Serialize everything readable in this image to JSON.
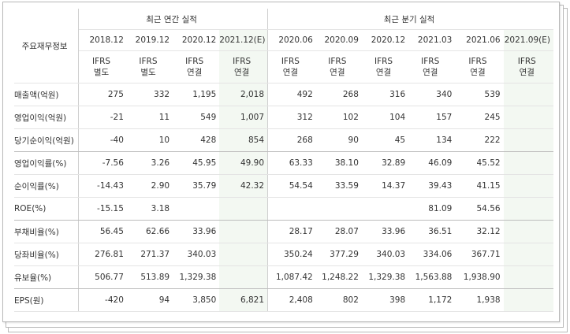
{
  "header": {
    "row_label": "주요재무정보",
    "annual_title": "최근 연간 실적",
    "quarterly_title": "최근 분기 실적"
  },
  "periods": [
    "2018.12",
    "2019.12",
    "2020.12",
    "2021.12(E)",
    "2020.06",
    "2020.09",
    "2020.12",
    "2021.03",
    "2021.06",
    "2021.09(E)"
  ],
  "ifrs": [
    [
      "IFRS",
      "별도"
    ],
    [
      "IFRS",
      "별도"
    ],
    [
      "IFRS",
      "연결"
    ],
    [
      "IFRS",
      "연결"
    ],
    [
      "IFRS",
      "연결"
    ],
    [
      "IFRS",
      "연결"
    ],
    [
      "IFRS",
      "연결"
    ],
    [
      "IFRS",
      "연결"
    ],
    [
      "IFRS",
      "연결"
    ],
    [
      "IFRS",
      "연결"
    ]
  ],
  "rows": [
    {
      "label": "매출액(억원)",
      "values": [
        "275",
        "332",
        "1,195",
        "2,018",
        "492",
        "268",
        "316",
        "340",
        "539",
        ""
      ]
    },
    {
      "label": "영업이익(억원)",
      "values": [
        "-21",
        "11",
        "549",
        "1,007",
        "312",
        "102",
        "104",
        "157",
        "245",
        ""
      ]
    },
    {
      "label": "당기순이익(억원)",
      "values": [
        "-40",
        "10",
        "428",
        "854",
        "268",
        "90",
        "45",
        "134",
        "222",
        ""
      ]
    },
    {
      "label": "영업이익률(%)",
      "values": [
        "-7.56",
        "3.26",
        "45.95",
        "49.90",
        "63.33",
        "38.10",
        "32.89",
        "46.09",
        "45.52",
        ""
      ]
    },
    {
      "label": "순이익률(%)",
      "values": [
        "-14.43",
        "2.90",
        "35.79",
        "42.32",
        "54.54",
        "33.59",
        "14.37",
        "39.43",
        "41.15",
        ""
      ]
    },
    {
      "label": "ROE(%)",
      "values": [
        "-15.15",
        "3.18",
        "",
        "",
        "",
        "",
        "",
        "81.09",
        "54.56",
        ""
      ]
    },
    {
      "label": "부채비율(%)",
      "values": [
        "56.45",
        "62.66",
        "33.96",
        "",
        "28.17",
        "28.07",
        "33.96",
        "36.51",
        "32.12",
        ""
      ]
    },
    {
      "label": "당좌비율(%)",
      "values": [
        "276.81",
        "271.37",
        "340.03",
        "",
        "350.24",
        "377.29",
        "340.03",
        "334.06",
        "367.71",
        ""
      ]
    },
    {
      "label": "유보율(%)",
      "values": [
        "506.77",
        "513.89",
        "1,329.38",
        "",
        "1,087.42",
        "1,248.22",
        "1,329.38",
        "1,563.88",
        "1,938.90",
        ""
      ]
    },
    {
      "label": "EPS(원)",
      "values": [
        "-420",
        "94",
        "3,850",
        "6,821",
        "2,408",
        "802",
        "398",
        "1,172",
        "1,938",
        ""
      ]
    }
  ],
  "colors": {
    "negative": "#d63a22",
    "ifrs": "#e4531b",
    "estimate_bg": "#f3f8f2"
  }
}
